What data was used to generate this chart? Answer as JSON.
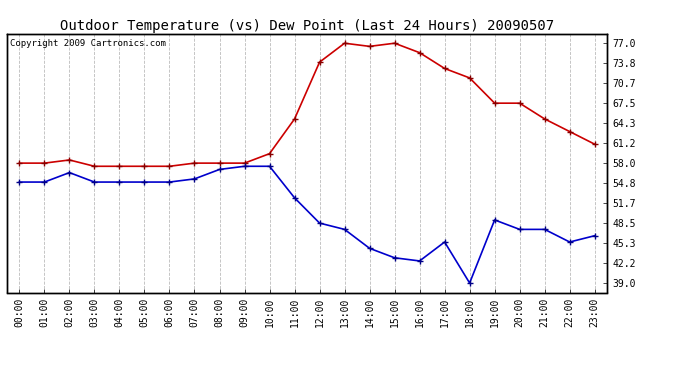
{
  "title": "Outdoor Temperature (vs) Dew Point (Last 24 Hours) 20090507",
  "copyright_text": "Copyright 2009 Cartronics.com",
  "x_labels": [
    "00:00",
    "01:00",
    "02:00",
    "03:00",
    "04:00",
    "05:00",
    "06:00",
    "07:00",
    "08:00",
    "09:00",
    "10:00",
    "11:00",
    "12:00",
    "13:00",
    "14:00",
    "15:00",
    "16:00",
    "17:00",
    "18:00",
    "19:00",
    "20:00",
    "21:00",
    "22:00",
    "23:00"
  ],
  "temperature": [
    58.0,
    58.0,
    58.5,
    57.5,
    57.5,
    57.5,
    57.5,
    58.0,
    58.0,
    58.0,
    59.5,
    65.0,
    74.0,
    77.0,
    76.5,
    77.0,
    75.5,
    73.0,
    71.5,
    67.5,
    67.5,
    65.0,
    63.0,
    61.0
  ],
  "dew_point": [
    55.0,
    55.0,
    56.5,
    55.0,
    55.0,
    55.0,
    55.0,
    55.5,
    57.0,
    57.5,
    57.5,
    52.5,
    48.5,
    47.5,
    44.5,
    43.0,
    42.5,
    45.5,
    39.0,
    49.0,
    47.5,
    47.5,
    45.5,
    46.5
  ],
  "temp_color": "#cc0000",
  "dew_color": "#0000cc",
  "bg_color": "#ffffff",
  "plot_bg_color": "#ffffff",
  "grid_color": "#bbbbbb",
  "y_right_ticks": [
    39.0,
    42.2,
    45.3,
    48.5,
    51.7,
    54.8,
    58.0,
    61.2,
    64.3,
    67.5,
    70.7,
    73.8,
    77.0
  ],
  "ylim": [
    37.5,
    78.5
  ],
  "marker": "+",
  "markersize": 5,
  "linewidth": 1.2,
  "title_fontsize": 10,
  "tick_fontsize": 7,
  "copyright_fontsize": 6.5
}
